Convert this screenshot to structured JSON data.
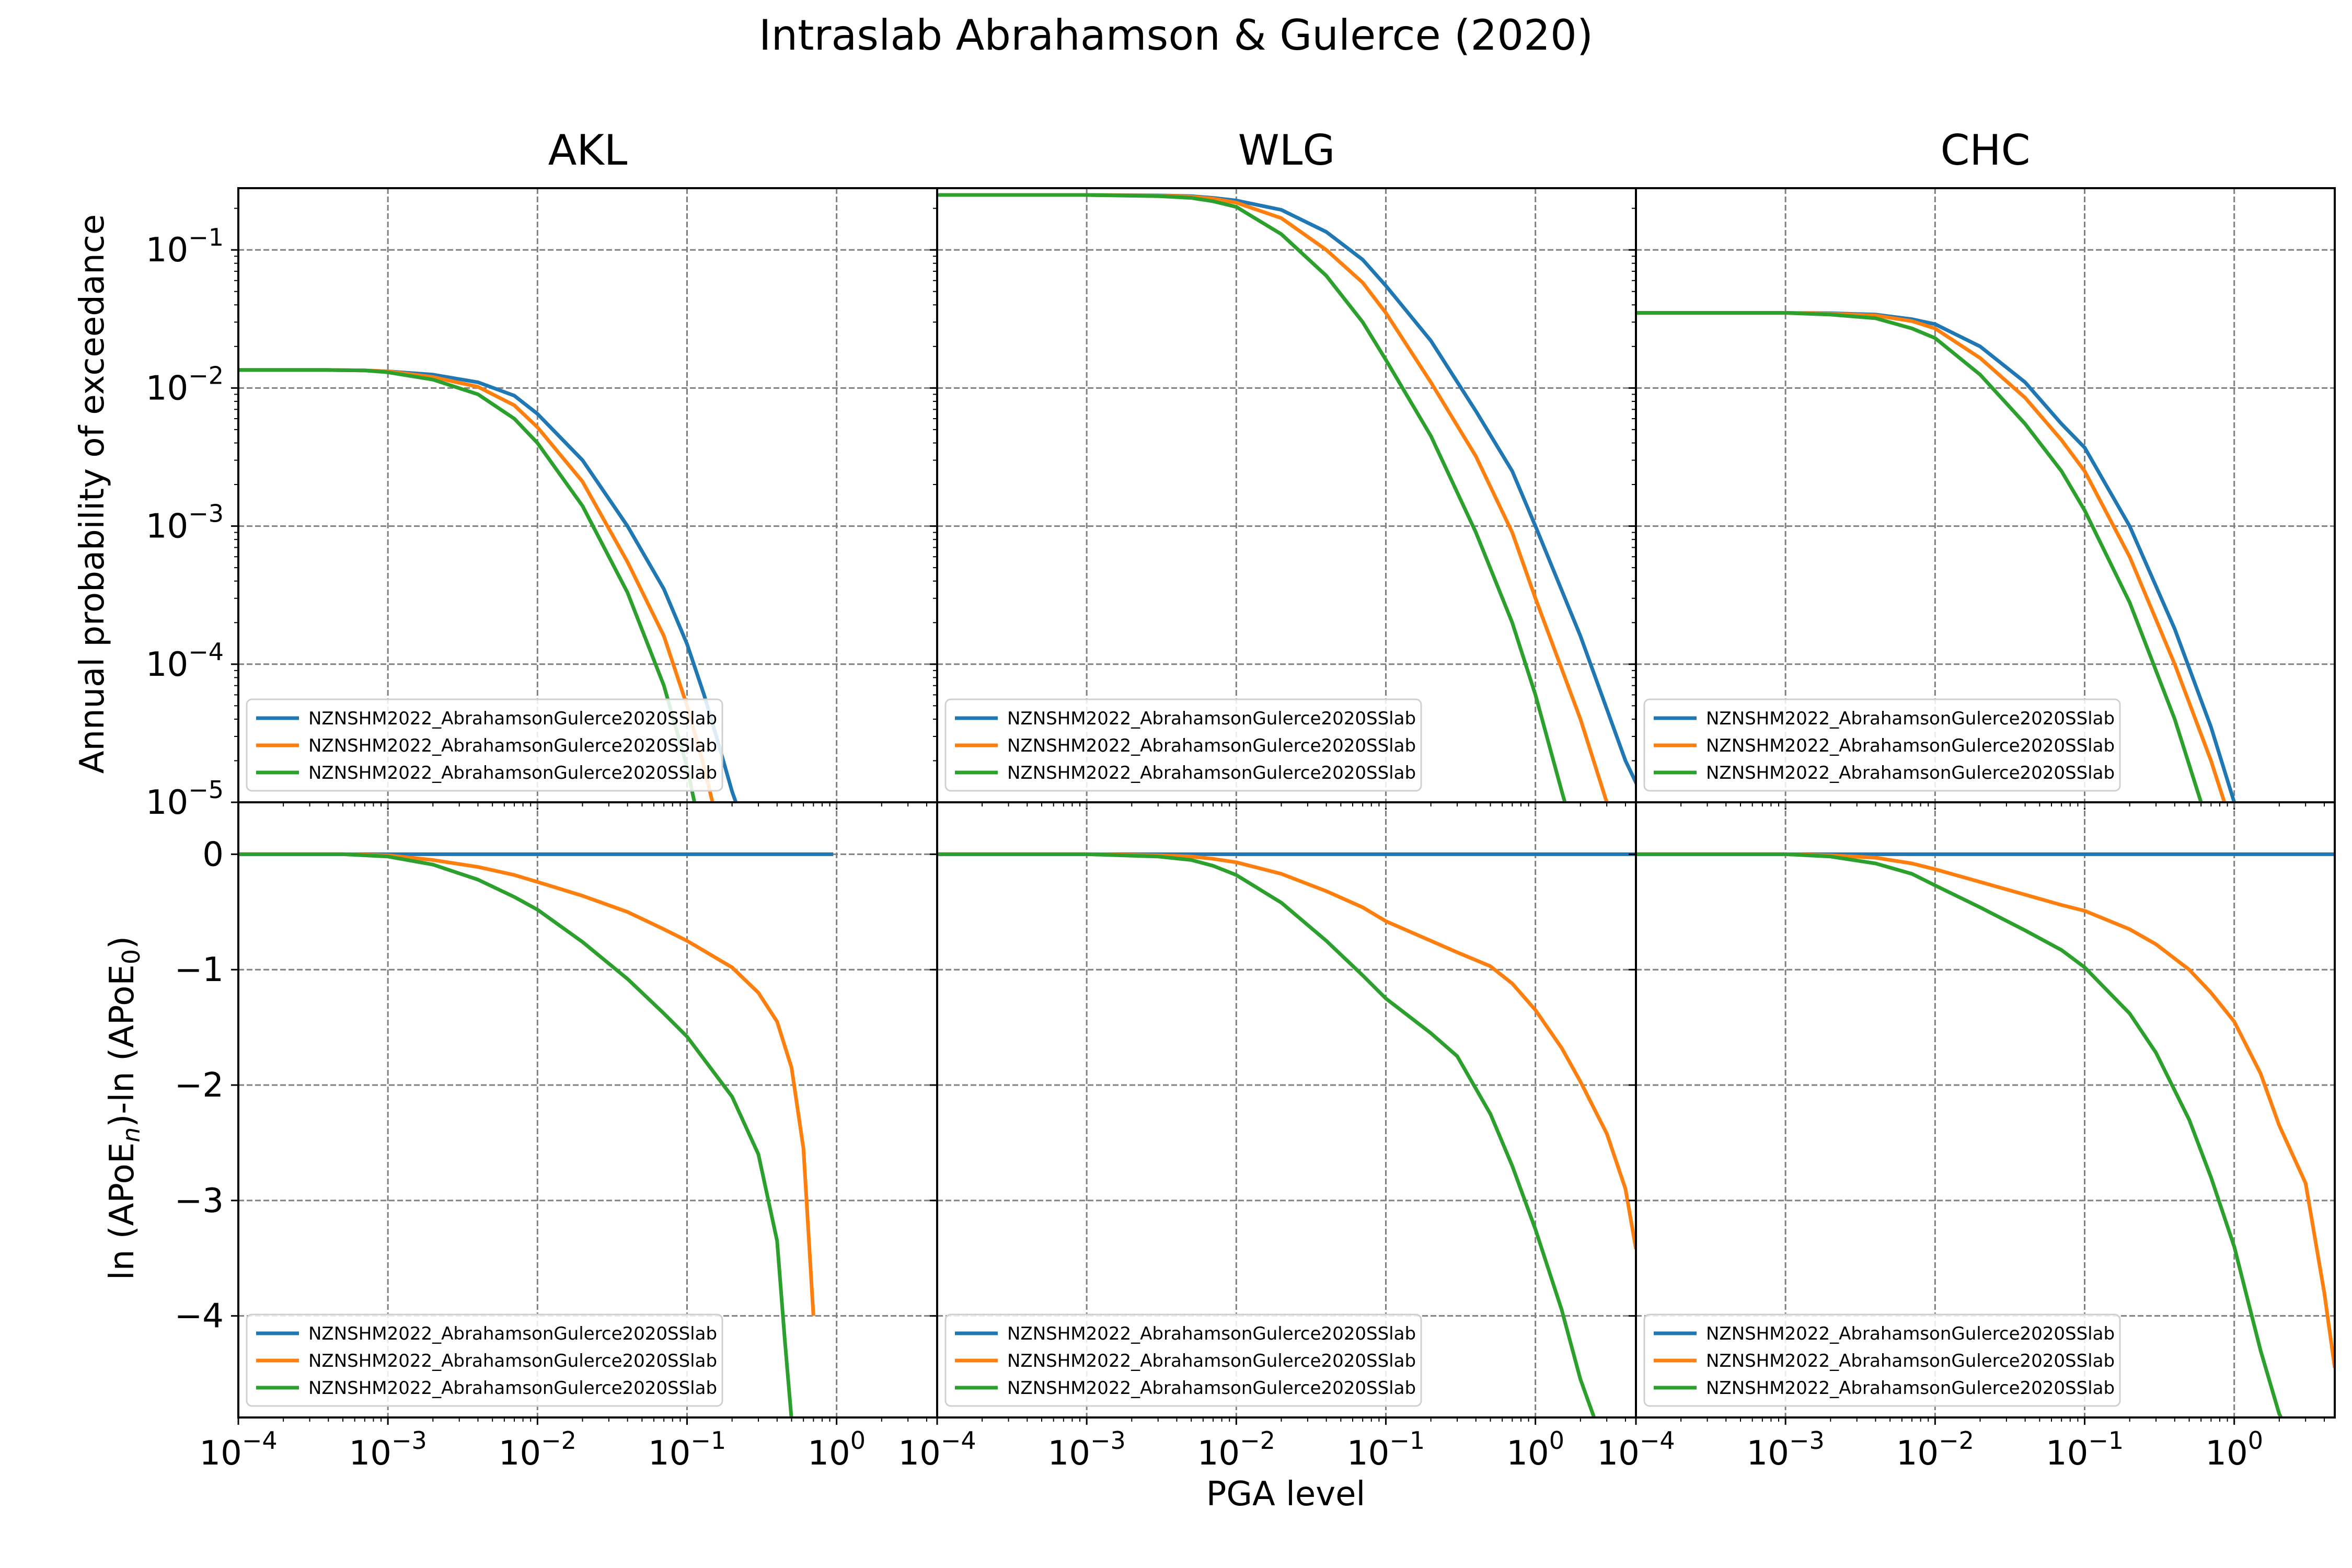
{
  "figure": {
    "title": "Intraslab Abrahamson & Gulerce (2020)",
    "xlabel": "PGA level",
    "ylabel_top": "Annual probability of exceedance",
    "ylabel_bottom_main": "ln (APoE",
    "ylabel_bottom_sub1": "n",
    "ylabel_bottom_mid": ")-ln (APoE",
    "ylabel_bottom_sub2": "0",
    "ylabel_bottom_end": ")"
  },
  "colors": {
    "series1": "#1f77b4",
    "series2": "#ff7f0e",
    "series3": "#2ca02c",
    "grid": "#808080"
  },
  "chart_data": [
    {
      "type": "line",
      "panel": "AKL",
      "title": "AKL",
      "xscale": "log",
      "yscale": "log",
      "xlim": [
        0.0001,
        4.7
      ],
      "ylim": [
        1e-05,
        0.28
      ],
      "grid": true,
      "legend_position": "lower-left",
      "series": [
        {
          "name": "NZNSHM2022_AbrahamsonGulerce2020SSlab",
          "color": "#1f77b4",
          "x": [
            0.0001,
            0.0002,
            0.0004,
            0.0007,
            0.001,
            0.002,
            0.004,
            0.007,
            0.01,
            0.02,
            0.04,
            0.07,
            0.1,
            0.13,
            0.16,
            0.2,
            0.25
          ],
          "y": [
            0.0135,
            0.0135,
            0.0135,
            0.0134,
            0.0132,
            0.0125,
            0.011,
            0.0088,
            0.0065,
            0.003,
            0.001,
            0.00035,
            0.00014,
            6e-05,
            2.8e-05,
            1.2e-05,
            6e-06
          ]
        },
        {
          "name": "NZNSHM2022_AbrahamsonGulerce2020SSlab",
          "color": "#ff7f0e",
          "x": [
            0.0001,
            0.0002,
            0.0004,
            0.0007,
            0.001,
            0.002,
            0.004,
            0.007,
            0.01,
            0.02,
            0.04,
            0.07,
            0.1,
            0.13,
            0.16
          ],
          "y": [
            0.0135,
            0.0135,
            0.0135,
            0.0134,
            0.0132,
            0.012,
            0.0102,
            0.0075,
            0.0052,
            0.0021,
            0.00055,
            0.00016,
            5e-05,
            1.8e-05,
            7e-06
          ]
        },
        {
          "name": "NZNSHM2022_AbrahamsonGulerce2020SSlab",
          "color": "#2ca02c",
          "x": [
            0.0001,
            0.0002,
            0.0004,
            0.0007,
            0.001,
            0.002,
            0.004,
            0.007,
            0.01,
            0.02,
            0.04,
            0.07,
            0.1,
            0.12
          ],
          "y": [
            0.0135,
            0.0135,
            0.0135,
            0.0134,
            0.013,
            0.0115,
            0.009,
            0.006,
            0.004,
            0.0014,
            0.00033,
            7e-05,
            1.8e-05,
            7e-06
          ]
        }
      ]
    },
    {
      "type": "line",
      "panel": "WLG",
      "title": "WLG",
      "xscale": "log",
      "yscale": "log",
      "xlim": [
        0.0001,
        4.7
      ],
      "ylim": [
        1e-05,
        0.28
      ],
      "grid": true,
      "legend_position": "lower-left",
      "series": [
        {
          "name": "NZNSHM2022_AbrahamsonGulerce2020SSlab",
          "color": "#1f77b4",
          "x": [
            0.0001,
            0.001,
            0.003,
            0.005,
            0.007,
            0.01,
            0.02,
            0.04,
            0.07,
            0.1,
            0.2,
            0.4,
            0.7,
            1.0,
            2.0,
            4.0,
            6.0
          ],
          "y": [
            0.25,
            0.25,
            0.248,
            0.245,
            0.238,
            0.228,
            0.195,
            0.135,
            0.085,
            0.055,
            0.022,
            0.0068,
            0.0025,
            0.001,
            0.00016,
            2e-05,
            8e-06
          ]
        },
        {
          "name": "NZNSHM2022_AbrahamsonGulerce2020SSlab",
          "color": "#ff7f0e",
          "x": [
            0.0001,
            0.001,
            0.003,
            0.005,
            0.007,
            0.01,
            0.02,
            0.04,
            0.07,
            0.1,
            0.2,
            0.4,
            0.7,
            1.0,
            2.0,
            3.0,
            4.0
          ],
          "y": [
            0.25,
            0.25,
            0.247,
            0.243,
            0.235,
            0.22,
            0.17,
            0.1,
            0.058,
            0.035,
            0.011,
            0.0032,
            0.0009,
            0.0003,
            4e-05,
            1e-05,
            4e-06
          ]
        },
        {
          "name": "NZNSHM2022_AbrahamsonGulerce2020SSlab",
          "color": "#2ca02c",
          "x": [
            0.0001,
            0.001,
            0.003,
            0.005,
            0.007,
            0.01,
            0.02,
            0.04,
            0.07,
            0.1,
            0.2,
            0.4,
            0.7,
            1.0,
            1.5,
            2.0
          ],
          "y": [
            0.25,
            0.25,
            0.245,
            0.238,
            0.225,
            0.205,
            0.13,
            0.065,
            0.03,
            0.016,
            0.0045,
            0.0009,
            0.0002,
            6e-05,
            1.2e-05,
            4e-06
          ]
        }
      ]
    },
    {
      "type": "line",
      "panel": "CHC",
      "title": "CHC",
      "xscale": "log",
      "yscale": "log",
      "xlim": [
        0.0001,
        4.7
      ],
      "ylim": [
        1e-05,
        0.28
      ],
      "grid": true,
      "legend_position": "lower-left",
      "series": [
        {
          "name": "NZNSHM2022_AbrahamsonGulerce2020SSlab",
          "color": "#1f77b4",
          "x": [
            0.0001,
            0.001,
            0.002,
            0.004,
            0.007,
            0.01,
            0.02,
            0.04,
            0.07,
            0.1,
            0.2,
            0.4,
            0.7,
            1.0,
            1.3
          ],
          "y": [
            0.035,
            0.035,
            0.0348,
            0.034,
            0.0315,
            0.029,
            0.02,
            0.011,
            0.0055,
            0.0037,
            0.001,
            0.00018,
            3.5e-05,
            1e-05,
            4e-06
          ]
        },
        {
          "name": "NZNSHM2022_AbrahamsonGulerce2020SSlab",
          "color": "#ff7f0e",
          "x": [
            0.0001,
            0.001,
            0.002,
            0.004,
            0.007,
            0.01,
            0.02,
            0.04,
            0.07,
            0.1,
            0.2,
            0.4,
            0.7,
            1.0
          ],
          "y": [
            0.035,
            0.035,
            0.0345,
            0.0335,
            0.0305,
            0.027,
            0.0165,
            0.0085,
            0.0042,
            0.0025,
            0.0006,
            0.0001,
            2e-05,
            6e-06
          ]
        },
        {
          "name": "NZNSHM2022_AbrahamsonGulerce2020SSlab",
          "color": "#2ca02c",
          "x": [
            0.0001,
            0.001,
            0.002,
            0.004,
            0.007,
            0.01,
            0.02,
            0.04,
            0.07,
            0.1,
            0.2,
            0.4,
            0.6,
            0.8
          ],
          "y": [
            0.035,
            0.035,
            0.034,
            0.032,
            0.027,
            0.023,
            0.0125,
            0.0055,
            0.0025,
            0.0013,
            0.00028,
            4e-05,
            1e-05,
            4e-06
          ]
        }
      ]
    },
    {
      "type": "line",
      "panel": "AKL-ratio",
      "title": "",
      "xscale": "log",
      "yscale": "linear",
      "xlim": [
        0.0001,
        4.7
      ],
      "ylim": [
        -4.88,
        0.45
      ],
      "grid": true,
      "legend_position": "lower-left",
      "series": [
        {
          "name": "NZNSHM2022_AbrahamsonGulerce2020SSlab",
          "color": "#1f77b4",
          "x": [
            0.0001,
            0.95
          ],
          "y": [
            0,
            0
          ]
        },
        {
          "name": "NZNSHM2022_AbrahamsonGulerce2020SSlab",
          "color": "#ff7f0e",
          "x": [
            0.0001,
            0.0005,
            0.001,
            0.002,
            0.004,
            0.007,
            0.01,
            0.02,
            0.04,
            0.07,
            0.1,
            0.2,
            0.3,
            0.4,
            0.5,
            0.6,
            0.7
          ],
          "y": [
            0,
            0,
            -0.01,
            -0.05,
            -0.11,
            -0.18,
            -0.24,
            -0.36,
            -0.5,
            -0.65,
            -0.75,
            -0.98,
            -1.2,
            -1.45,
            -1.85,
            -2.55,
            -4.0
          ]
        },
        {
          "name": "NZNSHM2022_AbrahamsonGulerce2020SSlab",
          "color": "#2ca02c",
          "x": [
            0.0001,
            0.0005,
            0.001,
            0.002,
            0.004,
            0.007,
            0.01,
            0.02,
            0.04,
            0.07,
            0.1,
            0.2,
            0.3,
            0.4,
            0.45,
            0.5
          ],
          "y": [
            0,
            0,
            -0.02,
            -0.09,
            -0.22,
            -0.37,
            -0.48,
            -0.76,
            -1.08,
            -1.38,
            -1.58,
            -2.1,
            -2.6,
            -3.35,
            -4.2,
            -4.9
          ]
        }
      ]
    },
    {
      "type": "line",
      "panel": "WLG-ratio",
      "title": "",
      "xscale": "log",
      "yscale": "linear",
      "xlim": [
        0.0001,
        4.7
      ],
      "ylim": [
        -4.88,
        0.45
      ],
      "grid": true,
      "legend_position": "lower-left",
      "series": [
        {
          "name": "NZNSHM2022_AbrahamsonGulerce2020SSlab",
          "color": "#1f77b4",
          "x": [
            0.0001,
            4.7
          ],
          "y": [
            0,
            0
          ]
        },
        {
          "name": "NZNSHM2022_AbrahamsonGulerce2020SSlab",
          "color": "#ff7f0e",
          "x": [
            0.0001,
            0.001,
            0.003,
            0.005,
            0.007,
            0.01,
            0.02,
            0.04,
            0.07,
            0.1,
            0.2,
            0.3,
            0.5,
            0.7,
            1.0,
            1.5,
            2.0,
            3.0,
            4.0,
            4.7
          ],
          "y": [
            0,
            0,
            -0.01,
            -0.02,
            -0.04,
            -0.07,
            -0.17,
            -0.32,
            -0.46,
            -0.58,
            -0.75,
            -0.85,
            -0.97,
            -1.12,
            -1.35,
            -1.68,
            -1.97,
            -2.42,
            -2.9,
            -3.42
          ]
        },
        {
          "name": "NZNSHM2022_AbrahamsonGulerce2020SSlab",
          "color": "#2ca02c",
          "x": [
            0.0001,
            0.001,
            0.003,
            0.005,
            0.007,
            0.01,
            0.02,
            0.04,
            0.07,
            0.1,
            0.2,
            0.3,
            0.5,
            0.7,
            1.0,
            1.5,
            2.0,
            2.5
          ],
          "y": [
            0,
            0,
            -0.02,
            -0.05,
            -0.1,
            -0.18,
            -0.42,
            -0.75,
            -1.05,
            -1.25,
            -1.55,
            -1.75,
            -2.25,
            -2.7,
            -3.25,
            -3.95,
            -4.55,
            -4.9
          ]
        }
      ]
    },
    {
      "type": "line",
      "panel": "CHC-ratio",
      "title": "",
      "xscale": "log",
      "yscale": "linear",
      "xlim": [
        0.0001,
        4.7
      ],
      "ylim": [
        -4.88,
        0.45
      ],
      "grid": true,
      "legend_position": "lower-left",
      "series": [
        {
          "name": "NZNSHM2022_AbrahamsonGulerce2020SSlab",
          "color": "#1f77b4",
          "x": [
            0.0001,
            4.7
          ],
          "y": [
            0,
            0
          ]
        },
        {
          "name": "NZNSHM2022_AbrahamsonGulerce2020SSlab",
          "color": "#ff7f0e",
          "x": [
            0.0001,
            0.001,
            0.002,
            0.004,
            0.007,
            0.01,
            0.02,
            0.04,
            0.07,
            0.1,
            0.2,
            0.3,
            0.5,
            0.7,
            1.0,
            1.5,
            2.0,
            3.0,
            4.0,
            4.7
          ],
          "y": [
            0,
            0,
            -0.01,
            -0.03,
            -0.08,
            -0.13,
            -0.24,
            -0.35,
            -0.44,
            -0.49,
            -0.65,
            -0.78,
            -1.0,
            -1.2,
            -1.45,
            -1.9,
            -2.35,
            -2.85,
            -3.8,
            -4.45
          ]
        },
        {
          "name": "NZNSHM2022_AbrahamsonGulerce2020SSlab",
          "color": "#2ca02c",
          "x": [
            0.0001,
            0.001,
            0.002,
            0.004,
            0.007,
            0.01,
            0.02,
            0.04,
            0.07,
            0.1,
            0.2,
            0.3,
            0.5,
            0.7,
            1.0,
            1.5,
            2.0,
            2.3
          ],
          "y": [
            0,
            0,
            -0.02,
            -0.08,
            -0.17,
            -0.27,
            -0.46,
            -0.66,
            -0.83,
            -0.98,
            -1.38,
            -1.72,
            -2.3,
            -2.8,
            -3.4,
            -4.3,
            -4.85,
            -5.0
          ]
        }
      ]
    }
  ]
}
